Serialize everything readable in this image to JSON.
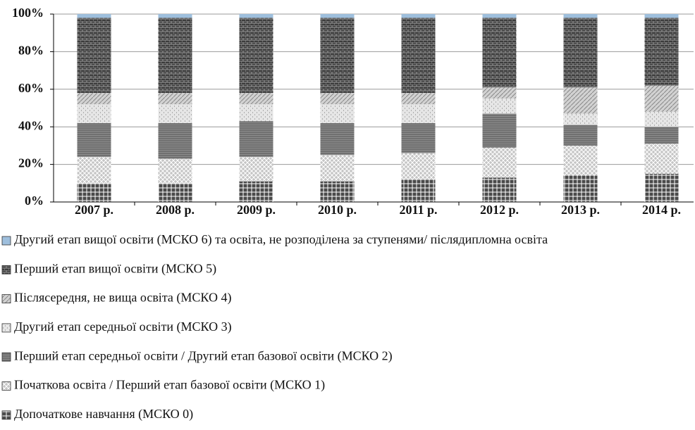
{
  "chart_data": {
    "type": "bar",
    "stacked": true,
    "categories": [
      "2007 р.",
      "2008 р.",
      "2009 р.",
      "2010 р.",
      "2011 р.",
      "2012 р.",
      "2013 р.",
      "2014 р."
    ],
    "ylim": [
      0,
      100
    ],
    "yticks": [
      {
        "value": 0,
        "label": "0%"
      },
      {
        "value": 20,
        "label": "20%"
      },
      {
        "value": 40,
        "label": "40%"
      },
      {
        "value": 60,
        "label": "60%"
      },
      {
        "value": 80,
        "label": "80%"
      },
      {
        "value": 100,
        "label": "100%"
      }
    ],
    "grid": true,
    "legend": "bottom",
    "series": [
      {
        "name": "Допочаткове навчання (МСКО 0)",
        "color": "#4a4a4a",
        "values": [
          10,
          10,
          11,
          11,
          12,
          13,
          14,
          15
        ]
      },
      {
        "name": "Початкова освіта / Перший етап базової освіти (МСКО 1)",
        "color": "#c4c4c4",
        "values": [
          14,
          13,
          13,
          14,
          14,
          16,
          16,
          16
        ]
      },
      {
        "name": "Перший етап середньої освіти / Другий етап базової освіти (МСКО 2)",
        "color": "#8c8c8c",
        "values": [
          18,
          19,
          19,
          17,
          16,
          18,
          11,
          9
        ]
      },
      {
        "name": "Другий етап середньої освіти (МСКО 3)",
        "color": "#e6e6e6",
        "values": [
          10,
          10,
          9,
          10,
          10,
          8,
          6,
          8
        ]
      },
      {
        "name": "Післясередня, не вища освіта (МСКО 4)",
        "color": "#d2d2d2",
        "values": [
          6,
          6,
          6,
          6,
          6,
          6,
          14,
          14
        ]
      },
      {
        "name": "Перший етап вищої освіти (МСКО 5)",
        "color": "#3c3c3c",
        "values": [
          40,
          40,
          40,
          40,
          40,
          37,
          37,
          36
        ]
      },
      {
        "name": "Другий етап вищої освіти (МСКО 6) та освіта, не розподілена за ступенями/ післядипломна освіта",
        "color": "#9ebfdd",
        "values": [
          2,
          2,
          2,
          2,
          2,
          2,
          2,
          2
        ]
      }
    ]
  }
}
